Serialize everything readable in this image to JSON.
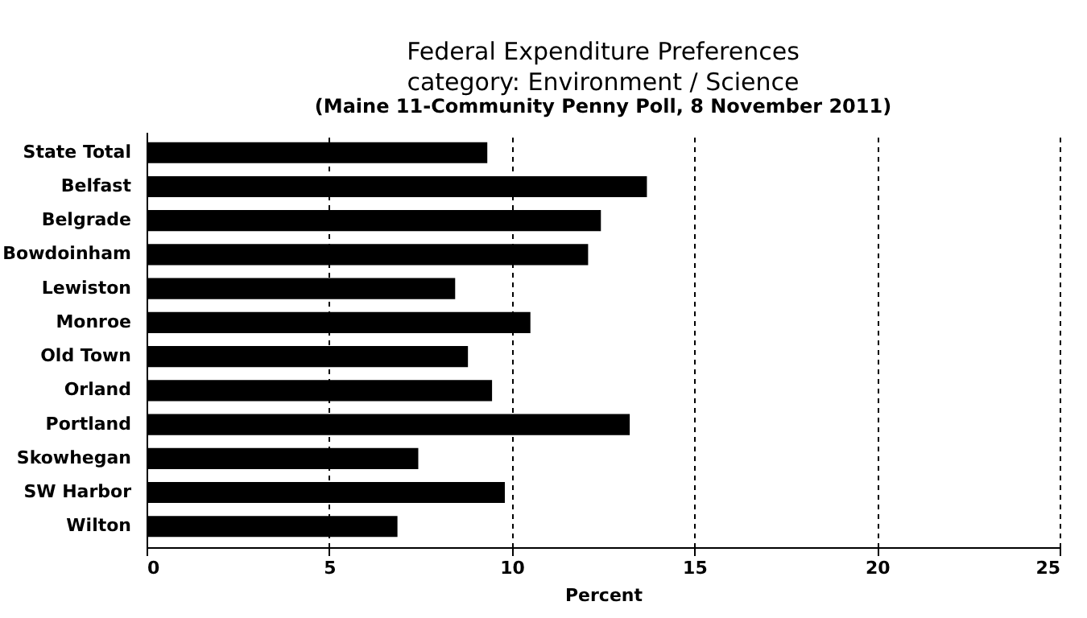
{
  "chart_data": {
    "type": "bar",
    "orientation": "horizontal",
    "title": "Federal Expenditure Preferences",
    "subtitle": "category:  Environment / Science",
    "annotations": [
      "(Maine 11-Community Penny Poll,  8 November 2011)"
    ],
    "categories": [
      "State Total",
      "Belfast",
      "Belgrade",
      "Bowdoinham",
      "Lewiston",
      "Monroe",
      "Old Town",
      "Orland",
      "Portland",
      "Skowhegan",
      "SW Harbor",
      "Wilton"
    ],
    "values": [
      9.33,
      13.7,
      12.44,
      12.09,
      8.45,
      10.51,
      8.8,
      9.46,
      13.23,
      7.44,
      9.81,
      6.87
    ],
    "color": "#000000",
    "xlabel": "Percent",
    "xlim": [
      0,
      25
    ],
    "xticks": [
      0,
      5,
      10,
      15,
      20,
      25
    ],
    "grid": "x"
  }
}
